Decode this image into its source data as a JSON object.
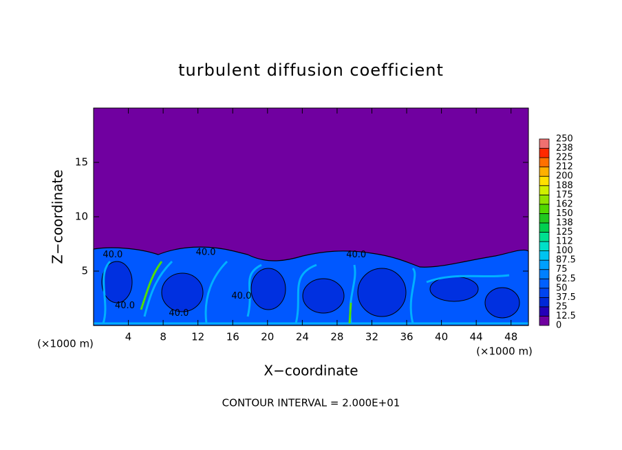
{
  "chart_data": {
    "type": "contour",
    "title": "turbulent diffusion coefficient",
    "xlabel": "X−coordinate",
    "ylabel": "Z−coordinate",
    "x_unit_label": "(×1000 m)",
    "y_unit_label": "(×1000 m)",
    "xlim": [
      0,
      50
    ],
    "ylim": [
      0,
      20
    ],
    "xticks": [
      4,
      8,
      12,
      16,
      20,
      24,
      28,
      32,
      36,
      40,
      44,
      48
    ],
    "yticks": [
      5,
      10,
      15
    ],
    "colorbar": {
      "levels": [
        0,
        12.5,
        25,
        37.5,
        50,
        62.5,
        75,
        87.5,
        100,
        {
          "value": 112.5,
          "label": "112"
        },
        125,
        {
          "value": 137.5,
          "label": "138"
        },
        150,
        {
          "value": 162.5,
          "label": "162"
        },
        175,
        {
          "value": 187.5,
          "label": "188"
        },
        200,
        {
          "value": 212.5,
          "label": "212"
        },
        225,
        {
          "value": 237.5,
          "label": "238"
        },
        250
      ],
      "colors": [
        "#7000a0",
        "#2400b8",
        "#0028d8",
        "#0044f0",
        "#0060ff",
        "#0080ff",
        "#00a0ff",
        "#00c4f0",
        "#00e0c8",
        "#00e090",
        "#00d050",
        "#20c820",
        "#50d800",
        "#90e400",
        "#d0f000",
        "#ffe000",
        "#ffb000",
        "#ff7000",
        "#ff2800",
        "#f07070"
      ]
    },
    "contour_labels": [
      {
        "text": "40.0",
        "x": 2.2,
        "z": 6.5
      },
      {
        "text": "40.0",
        "x": 12.9,
        "z": 6.7
      },
      {
        "text": "40.0",
        "x": 30.2,
        "z": 6.5
      },
      {
        "text": "40.0",
        "x": 9.8,
        "z": 1.1
      },
      {
        "text": "40.0",
        "x": 3.6,
        "z": 1.8
      },
      {
        "text": "40.0",
        "x": 17,
        "z": 2.7
      }
    ],
    "footer": "CONTOUR INTERVAL = 2.000E+01"
  }
}
